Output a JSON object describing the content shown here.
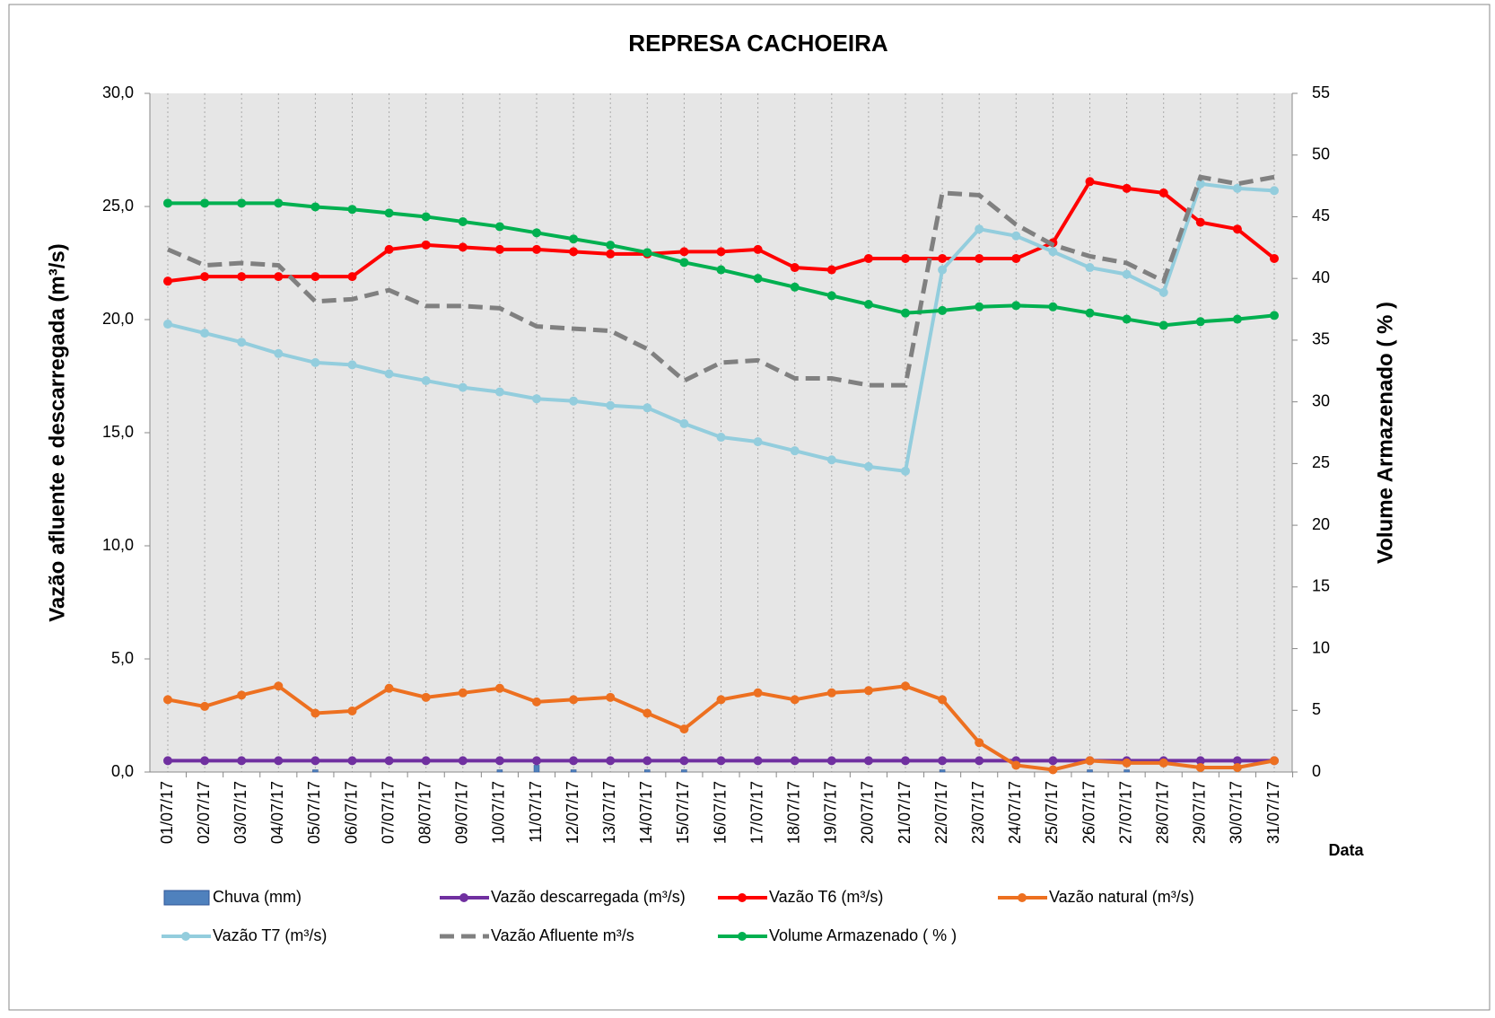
{
  "chart_data": {
    "type": "line",
    "title": "REPRESA CACHOEIRA",
    "y_label": "Vazão afluente e descarregada (m³/s)",
    "y2_label": "Volume Armazenado ( % )",
    "x_label": "Data",
    "categories": [
      "01/07/17",
      "02/07/17",
      "03/07/17",
      "04/07/17",
      "05/07/17",
      "06/07/17",
      "07/07/17",
      "08/07/17",
      "09/07/17",
      "10/07/17",
      "11/07/17",
      "12/07/17",
      "13/07/17",
      "14/07/17",
      "15/07/17",
      "16/07/17",
      "17/07/17",
      "18/07/17",
      "19/07/17",
      "20/07/17",
      "21/07/17",
      "22/07/17",
      "23/07/17",
      "24/07/17",
      "25/07/17",
      "26/07/17",
      "27/07/17",
      "28/07/17",
      "29/07/17",
      "30/07/17",
      "31/07/17"
    ],
    "ylim": [
      0,
      30
    ],
    "yticks": [
      {
        "value": 0,
        "label": "0,0"
      },
      {
        "value": 5,
        "label": "5,0"
      },
      {
        "value": 10,
        "label": "10,0"
      },
      {
        "value": 15,
        "label": "15,0"
      },
      {
        "value": 20,
        "label": "20,0"
      },
      {
        "value": 25,
        "label": "25,0"
      },
      {
        "value": 30,
        "label": "30,0"
      }
    ],
    "y2lim": [
      0,
      55
    ],
    "y2ticks": [
      0,
      5,
      10,
      15,
      20,
      25,
      30,
      35,
      40,
      45,
      50,
      55
    ],
    "series": [
      {
        "name": "Chuva (mm)",
        "type": "bar",
        "color": "#4f81bd",
        "values": [
          0,
          0,
          0,
          0,
          0.1,
          0,
          0,
          0,
          0,
          0.1,
          0.3,
          0.1,
          0,
          0.1,
          0.1,
          0,
          0,
          0,
          0,
          0,
          0,
          0.1,
          0,
          0,
          0,
          0.1,
          0.1,
          0,
          0,
          0,
          0
        ]
      },
      {
        "name": "Vazão descarregada (m³/s)",
        "color": "#7030a0",
        "values": [
          0.5,
          0.5,
          0.5,
          0.5,
          0.5,
          0.5,
          0.5,
          0.5,
          0.5,
          0.5,
          0.5,
          0.5,
          0.5,
          0.5,
          0.5,
          0.5,
          0.5,
          0.5,
          0.5,
          0.5,
          0.5,
          0.5,
          0.5,
          0.5,
          0.5,
          0.5,
          0.5,
          0.5,
          0.5,
          0.5,
          0.5
        ]
      },
      {
        "name": "Vazão T6  (m³/s)",
        "color": "#ff0000",
        "values": [
          21.7,
          21.9,
          21.9,
          21.9,
          21.9,
          21.9,
          23.1,
          23.3,
          23.2,
          23.1,
          23.1,
          23.0,
          22.9,
          22.9,
          23.0,
          23.0,
          23.1,
          22.3,
          22.2,
          22.7,
          22.7,
          22.7,
          22.7,
          22.7,
          23.4,
          26.1,
          25.8,
          25.6,
          24.3,
          24.0,
          22.7
        ]
      },
      {
        "name": "Vazão natural (m³/s)",
        "color": "#ed7020",
        "values": [
          3.2,
          2.9,
          3.4,
          3.8,
          2.6,
          2.7,
          3.7,
          3.3,
          3.5,
          3.7,
          3.1,
          3.2,
          3.3,
          2.6,
          1.9,
          3.2,
          3.5,
          3.2,
          3.5,
          3.6,
          3.8,
          3.2,
          1.3,
          0.3,
          0.1,
          0.5,
          0.4,
          0.4,
          0.2,
          0.2,
          0.5
        ]
      },
      {
        "name": "Vazão T7 (m³/s)",
        "color": "#93cddd",
        "values": [
          19.8,
          19.4,
          19.0,
          18.5,
          18.1,
          18.0,
          17.6,
          17.3,
          17.0,
          16.8,
          16.5,
          16.4,
          16.2,
          16.1,
          15.4,
          14.8,
          14.6,
          14.2,
          13.8,
          13.5,
          13.3,
          22.2,
          24.0,
          23.7,
          23.0,
          22.3,
          22.0,
          21.2,
          26.0,
          25.8,
          25.7
        ]
      },
      {
        "name": "Vazão Afluente m³/s",
        "color": "#808080",
        "dashed": true,
        "markers": false,
        "values": [
          23.1,
          22.4,
          22.5,
          22.4,
          20.8,
          20.9,
          21.3,
          20.6,
          20.6,
          20.5,
          19.7,
          19.6,
          19.5,
          18.7,
          17.3,
          18.1,
          18.2,
          17.4,
          17.4,
          17.1,
          17.1,
          25.6,
          25.5,
          24.2,
          23.3,
          22.8,
          22.5,
          21.7,
          26.3,
          26.0,
          26.3
        ]
      },
      {
        "name": "Volume Armazenado ( % )",
        "color": "#00b050",
        "axis": "y2",
        "values": [
          46.1,
          46.1,
          46.1,
          46.1,
          45.8,
          45.6,
          45.3,
          45.0,
          44.6,
          44.2,
          43.7,
          43.2,
          42.7,
          42.1,
          41.3,
          40.7,
          40.0,
          39.3,
          38.6,
          37.9,
          37.2,
          37.4,
          37.7,
          37.8,
          37.7,
          37.2,
          36.7,
          36.2,
          36.5,
          36.7,
          37.0
        ]
      }
    ]
  }
}
